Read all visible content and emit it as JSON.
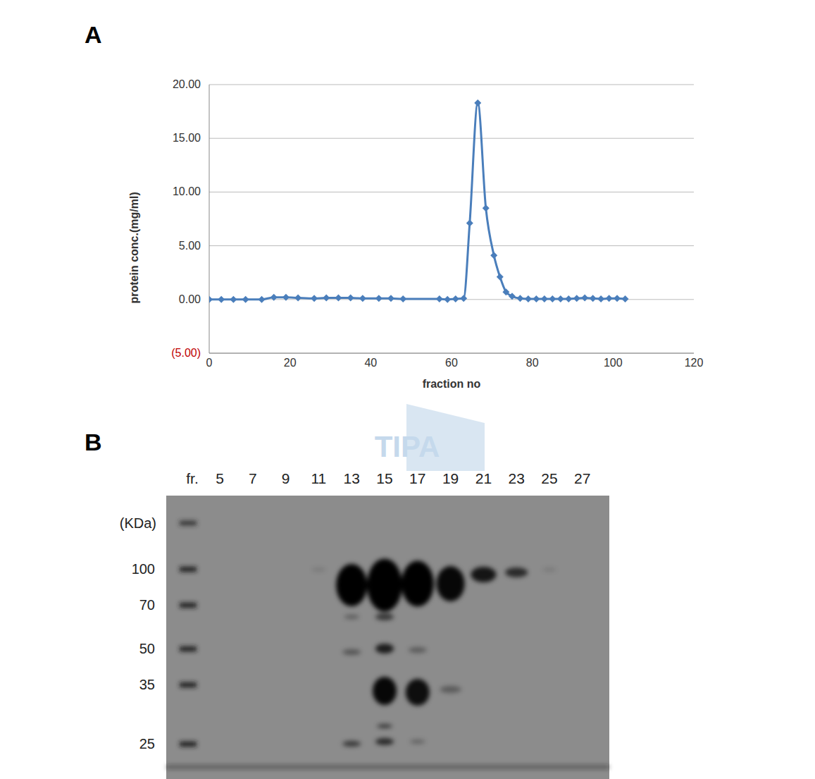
{
  "chart_data": {
    "type": "line",
    "panel_label": "A",
    "x_label": "fraction no",
    "y_label": "protein conc.(mg/ml)",
    "x": [
      0,
      3,
      6,
      9,
      13,
      16,
      19,
      22,
      26,
      29,
      32,
      35,
      38,
      42,
      45,
      48,
      57,
      59,
      61,
      63,
      64.5,
      66.5,
      68.5,
      70.5,
      72,
      73.5,
      75,
      77,
      79,
      81,
      83,
      85,
      87,
      89,
      91,
      93,
      95,
      97,
      99,
      101,
      103
    ],
    "values": [
      0,
      0,
      0,
      0,
      0,
      0.2,
      0.2,
      0.15,
      0.1,
      0.15,
      0.15,
      0.15,
      0.1,
      0.1,
      0.1,
      0.05,
      0.05,
      0,
      0.05,
      0.1,
      7.1,
      18.3,
      8.5,
      4.1,
      2.1,
      0.7,
      0.3,
      0.1,
      0.05,
      0.05,
      0.05,
      0.05,
      0.05,
      0.05,
      0.1,
      0.15,
      0.1,
      0.05,
      0.1,
      0.1,
      0.05
    ],
    "color": "#4a7ebb",
    "marker": "diamond",
    "grid": true,
    "xlim": [
      0,
      120
    ],
    "xticks": [
      0,
      20,
      40,
      60,
      80,
      100,
      120
    ],
    "ylim": [
      -5,
      20
    ],
    "yticks": [
      {
        "value": -5,
        "label": "(5.00)"
      },
      {
        "value": 0,
        "label": "0.00"
      },
      {
        "value": 5,
        "label": "5.00"
      },
      {
        "value": 10,
        "label": "10.00"
      },
      {
        "value": 15,
        "label": "15.00"
      },
      {
        "value": 20,
        "label": "20.00"
      }
    ]
  },
  "gel": {
    "panel_label": "B",
    "lane_header": "fr.",
    "lanes": [
      5,
      7,
      9,
      11,
      13,
      15,
      17,
      19,
      21,
      23,
      25,
      27
    ],
    "marker_unit": "(KDa)",
    "markers": [
      100,
      70,
      50,
      35,
      25
    ],
    "watermark": "TIPA"
  }
}
